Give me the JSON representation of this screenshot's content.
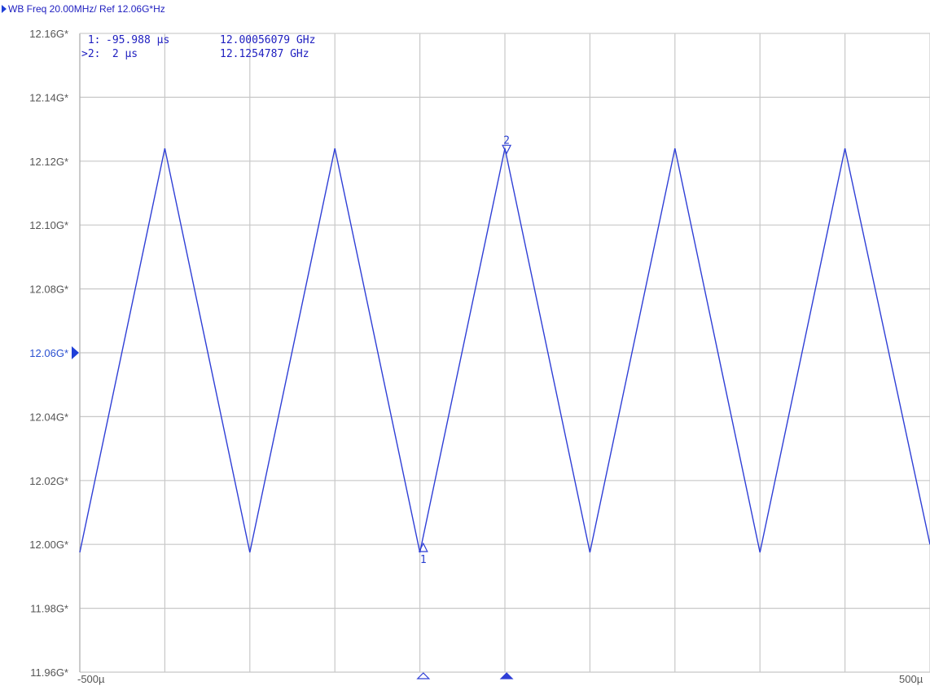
{
  "header": {
    "title": "WB Freq 20.00MHz/ Ref 12.06G*Hz"
  },
  "readout": {
    "rows": [
      {
        "prefix": " 1:",
        "time": "-95.988 µs",
        "freq": "12.00056079 GHz"
      },
      {
        "prefix": ">2:",
        "time": " 2 µs",
        "freq": "12.1254787 GHz"
      }
    ]
  },
  "colors": {
    "trace": "#2f3fd6",
    "grid": "#c8c8c8",
    "reference": "#1f3fd8",
    "text": "#2020c0"
  },
  "chart_data": {
    "type": "line",
    "title": "WB Freq 20.00MHz/ Ref 12.06G*Hz",
    "xlabel": "",
    "ylabel": "",
    "x_unit": "µs",
    "y_unit": "GHz",
    "xlim": [
      -500,
      500
    ],
    "ylim": [
      11.96,
      12.16
    ],
    "reference_level": 12.06,
    "grid": true,
    "y_tick_values": [
      12.16,
      12.14,
      12.12,
      12.1,
      12.08,
      12.06,
      12.04,
      12.02,
      12.0,
      11.98,
      11.96
    ],
    "y_tick_labels": [
      "12.16G*",
      "12.14G*",
      "12.12G*",
      "12.10G*",
      "12.08G*",
      "12.06G*",
      "12.04G*",
      "12.02G*",
      "12.00G*",
      "11.98G*",
      "11.96G*"
    ],
    "x_tick_labels": [
      "-500µ",
      "500µ"
    ],
    "series": [
      {
        "x": [
          -500,
          -400,
          -300,
          -200,
          -100,
          0,
          100,
          200,
          300,
          400,
          500
        ],
        "y": [
          11.9975,
          12.124,
          11.9975,
          12.124,
          11.9975,
          12.124,
          11.9975,
          12.124,
          11.9975,
          12.124,
          12.0
        ]
      }
    ],
    "markers": [
      {
        "label": "1",
        "x": -95.988,
        "y": 12.00056079,
        "pointer": "up",
        "active": false
      },
      {
        "label": "2",
        "x": 2,
        "y": 12.1254787,
        "pointer": "down",
        "active": true
      }
    ]
  }
}
